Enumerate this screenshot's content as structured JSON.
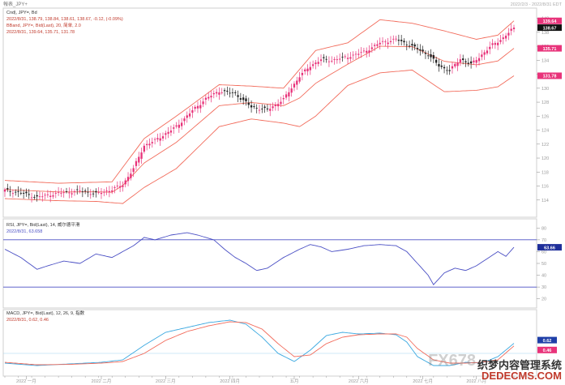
{
  "window": {
    "title": "報表_JPY+"
  },
  "top_right_meta": "2022/2/3 - 2022/8/31 EDT",
  "watermark": {
    "brand": "FX678",
    "main": "织梦内容管理系统",
    "url": "DEDECMS.COM"
  },
  "colors": {
    "bull_candle": "#e8337a",
    "bear_candle": "#222222",
    "bollinger": "#f26b5b",
    "rsi": "#4a4fc4",
    "macd_line": "#3aa8e0",
    "signal_line": "#f26b5b",
    "level_line": "#4a4fc4",
    "axis": "#999999"
  },
  "chart_data": [
    {
      "type": "candlestick",
      "legend": [
        "Cnd|, JPY=, Bd",
        "2022/8/31, 138.79, 138.84, 138.61, 138.67, -0.12, (-0.09%)",
        "BBand, JPY=, Bid(Last), 20, 简单, 2.0",
        "2022/8/31, 139.64, 135.71, 131.78"
      ],
      "ylim": [
        112,
        141
      ],
      "yticks": [
        114,
        116,
        118,
        120,
        122,
        124,
        126,
        128,
        130,
        132,
        134,
        136,
        138,
        140
      ],
      "price_badges": [
        {
          "label": "139.64",
          "value": 139.64,
          "color": "#e8337a"
        },
        {
          "label": "138.67",
          "value": 138.67,
          "color": "#111111"
        },
        {
          "label": "135.71",
          "value": 135.71,
          "color": "#e8337a"
        },
        {
          "label": "131.78",
          "value": 131.78,
          "color": "#e8337a"
        }
      ],
      "anchors": [
        [
          0,
          115.4
        ],
        [
          6,
          115.0
        ],
        [
          12,
          114.4
        ],
        [
          20,
          115.0
        ],
        [
          28,
          115.3
        ],
        [
          34,
          114.9
        ],
        [
          40,
          115.5
        ],
        [
          44,
          116.2
        ],
        [
          48,
          118.5
        ],
        [
          52,
          121.8
        ],
        [
          56,
          122.5
        ],
        [
          60,
          123.5
        ],
        [
          64,
          124.5
        ],
        [
          70,
          126.8
        ],
        [
          75,
          128.5
        ],
        [
          80,
          129.6
        ],
        [
          86,
          129.2
        ],
        [
          92,
          127.3
        ],
        [
          98,
          126.9
        ],
        [
          104,
          128.4
        ],
        [
          110,
          131.7
        ],
        [
          114,
          133.2
        ],
        [
          118,
          134.1
        ],
        [
          122,
          134.0
        ],
        [
          128,
          134.5
        ],
        [
          134,
          135.2
        ],
        [
          140,
          136.5
        ],
        [
          146,
          137.0
        ],
        [
          152,
          136.0
        ],
        [
          158,
          134.8
        ],
        [
          162,
          133.2
        ],
        [
          166,
          132.5
        ],
        [
          170,
          134.2
        ],
        [
          174,
          133.4
        ],
        [
          178,
          134.8
        ],
        [
          182,
          136.2
        ],
        [
          186,
          137.2
        ],
        [
          190,
          138.67
        ]
      ],
      "bb_upper": [
        [
          0,
          116.8
        ],
        [
          20,
          116.4
        ],
        [
          40,
          116.6
        ],
        [
          52,
          122.8
        ],
        [
          64,
          126.0
        ],
        [
          80,
          130.5
        ],
        [
          92,
          130.3
        ],
        [
          104,
          130.0
        ],
        [
          116,
          135.4
        ],
        [
          128,
          136.5
        ],
        [
          140,
          139.8
        ],
        [
          152,
          139.3
        ],
        [
          164,
          138.2
        ],
        [
          176,
          137.0
        ],
        [
          184,
          137.6
        ],
        [
          190,
          139.64
        ]
      ],
      "bb_lower": [
        [
          0,
          114.2
        ],
        [
          20,
          113.9
        ],
        [
          34,
          113.8
        ],
        [
          44,
          113.5
        ],
        [
          52,
          115.8
        ],
        [
          64,
          118.5
        ],
        [
          80,
          124.5
        ],
        [
          92,
          125.6
        ],
        [
          104,
          125.0
        ],
        [
          110,
          124.5
        ],
        [
          116,
          126.0
        ],
        [
          128,
          130.4
        ],
        [
          140,
          132.2
        ],
        [
          152,
          132.6
        ],
        [
          164,
          129.5
        ],
        [
          176,
          129.7
        ],
        [
          184,
          130.2
        ],
        [
          190,
          131.78
        ]
      ]
    },
    {
      "type": "line",
      "legend": [
        "RSI, JPY=, Bid(Last), 14, 威尔德平滑",
        "2022/8/31, 63.658"
      ],
      "ylim": [
        15,
        85
      ],
      "yticks": [
        20,
        30,
        40,
        50,
        60,
        70,
        80
      ],
      "levels": [
        70,
        30
      ],
      "badge": {
        "label": "63.66",
        "value": 63.66
      },
      "series": [
        [
          0,
          62
        ],
        [
          6,
          55
        ],
        [
          12,
          45
        ],
        [
          16,
          48
        ],
        [
          22,
          52
        ],
        [
          28,
          50
        ],
        [
          34,
          58
        ],
        [
          40,
          55
        ],
        [
          44,
          60
        ],
        [
          48,
          65
        ],
        [
          52,
          72
        ],
        [
          56,
          70
        ],
        [
          62,
          74
        ],
        [
          68,
          76
        ],
        [
          72,
          74
        ],
        [
          78,
          70
        ],
        [
          82,
          62
        ],
        [
          86,
          55
        ],
        [
          90,
          50
        ],
        [
          94,
          44
        ],
        [
          98,
          46
        ],
        [
          104,
          55
        ],
        [
          110,
          62
        ],
        [
          114,
          66
        ],
        [
          118,
          64
        ],
        [
          122,
          60
        ],
        [
          128,
          62
        ],
        [
          134,
          65
        ],
        [
          140,
          66
        ],
        [
          146,
          65
        ],
        [
          150,
          60
        ],
        [
          154,
          50
        ],
        [
          158,
          40
        ],
        [
          160,
          32
        ],
        [
          164,
          42
        ],
        [
          168,
          46
        ],
        [
          172,
          44
        ],
        [
          176,
          48
        ],
        [
          180,
          54
        ],
        [
          184,
          60
        ],
        [
          187,
          56
        ],
        [
          190,
          63.66
        ]
      ]
    },
    {
      "type": "line",
      "legend": [
        "MACD, JPY=, Bid(Last), 12, 26, 9, 指数",
        "2022/8/31, 0.62, 0.46"
      ],
      "ylim": [
        -1.2,
        2.4
      ],
      "series": [
        {
          "color_key": "macd_line",
          "points": [
            [
              0,
              -0.6
            ],
            [
              12,
              -0.75
            ],
            [
              24,
              -0.65
            ],
            [
              36,
              -0.55
            ],
            [
              44,
              -0.4
            ],
            [
              52,
              0.5
            ],
            [
              60,
              1.3
            ],
            [
              68,
              1.6
            ],
            [
              76,
              1.9
            ],
            [
              84,
              2.05
            ],
            [
              90,
              1.8
            ],
            [
              96,
              1.0
            ],
            [
              102,
              0.0
            ],
            [
              108,
              -0.5
            ],
            [
              114,
              0.2
            ],
            [
              120,
              1.1
            ],
            [
              126,
              1.3
            ],
            [
              132,
              1.2
            ],
            [
              140,
              1.25
            ],
            [
              146,
              1.15
            ],
            [
              150,
              0.7
            ],
            [
              154,
              -0.2
            ],
            [
              160,
              -0.75
            ],
            [
              166,
              -0.75
            ],
            [
              172,
              -0.55
            ],
            [
              178,
              -0.6
            ],
            [
              184,
              -0.2
            ],
            [
              190,
              0.62
            ]
          ]
        },
        {
          "color_key": "signal_line",
          "points": [
            [
              0,
              -0.55
            ],
            [
              12,
              -0.7
            ],
            [
              24,
              -0.68
            ],
            [
              36,
              -0.6
            ],
            [
              44,
              -0.5
            ],
            [
              52,
              0.0
            ],
            [
              60,
              0.8
            ],
            [
              68,
              1.35
            ],
            [
              76,
              1.7
            ],
            [
              84,
              1.95
            ],
            [
              90,
              1.9
            ],
            [
              96,
              1.5
            ],
            [
              102,
              0.6
            ],
            [
              108,
              -0.2
            ],
            [
              114,
              -0.1
            ],
            [
              120,
              0.6
            ],
            [
              126,
              1.0
            ],
            [
              132,
              1.15
            ],
            [
              140,
              1.2
            ],
            [
              146,
              1.2
            ],
            [
              150,
              1.0
            ],
            [
              154,
              0.3
            ],
            [
              160,
              -0.4
            ],
            [
              166,
              -0.6
            ],
            [
              172,
              -0.6
            ],
            [
              178,
              -0.55
            ],
            [
              184,
              -0.4
            ],
            [
              190,
              0.46
            ]
          ]
        }
      ],
      "badges": [
        {
          "label": "0.62",
          "value": 0.62,
          "color": "#1f3fa8"
        },
        {
          "label": "0.46",
          "value": 0.46,
          "color": "#e8337a"
        }
      ]
    }
  ],
  "x_axis": {
    "labels": [
      "2022 一月",
      "2022 二月",
      "2022 三月",
      "2022 四月",
      "五月",
      "2022 六月",
      "2022 七月",
      "2022 八月"
    ],
    "label_indices": [
      8,
      36,
      60,
      84,
      108,
      132,
      156,
      176
    ]
  }
}
